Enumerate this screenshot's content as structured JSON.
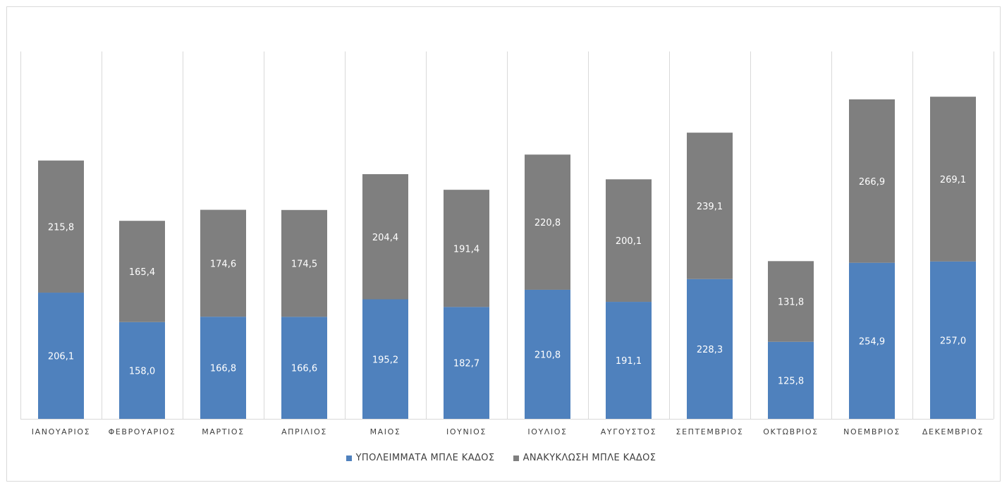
{
  "colors": {
    "leftover": "#4f81bd",
    "recycling": "#7f7f7f",
    "grid": "#d9d9d9",
    "label_text": "#ffffff",
    "axis_text": "#404040"
  },
  "chart_data": {
    "type": "bar",
    "stacked": true,
    "categories": [
      "ΙΑΝΟΥΑΡΙΟΣ",
      "ΦΕΒΡΟΥΑΡΙΟΣ",
      "ΜΑΡΤΙΟΣ",
      "ΑΠΡΙΛΙΟΣ",
      "ΜΑΙΟΣ",
      "ΙΟΥΝΙΟΣ",
      "ΙΟΥΛΙΟΣ",
      "ΑΥΓΟΥΣΤΟΣ",
      "ΣΕΠΤΕΜΒΡΙΟΣ",
      "ΟΚΤΩΒΡΙΟΣ",
      "ΝΟΕΜΒΡΙΟΣ",
      "ΔΕΚΕΜΒΡΙΟΣ"
    ],
    "series": [
      {
        "name": "ΥΠΟΛΕΙΜΜΑΤΑ ΜΠΛΕ ΚΑΔΟΣ",
        "values": [
          206.1,
          158.0,
          166.8,
          166.6,
          195.2,
          182.7,
          210.8,
          191.1,
          228.3,
          125.8,
          254.9,
          257.0
        ],
        "labels": [
          "206,1",
          "158,0",
          "166,8",
          "166,6",
          "195,2",
          "182,7",
          "210,8",
          "191,1",
          "228,3",
          "125,8",
          "254,9",
          "257,0"
        ]
      },
      {
        "name": "ΑΝΑΚΥΚΛΩΣΗ ΜΠΛΕ ΚΑΔΟΣ",
        "values": [
          215.8,
          165.4,
          174.6,
          174.5,
          204.4,
          191.4,
          220.8,
          200.1,
          239.1,
          131.8,
          266.9,
          269.1
        ],
        "labels": [
          "215,8",
          "165,4",
          "174,6",
          "174,5",
          "204,4",
          "191,4",
          "220,8",
          "200,1",
          "239,1",
          "131,8",
          "266,9",
          "269,1"
        ]
      }
    ],
    "title": "",
    "xlabel": "",
    "ylabel": "",
    "ylim": [
      0,
      600
    ],
    "grid": "vertical category separators",
    "legend": "bottom"
  }
}
